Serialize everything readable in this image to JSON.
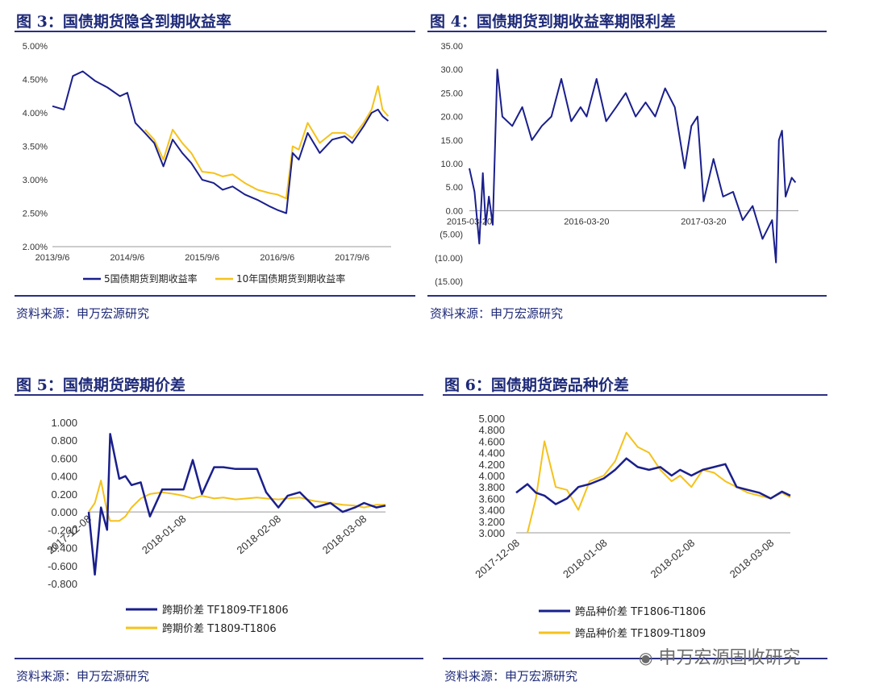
{
  "panels": {
    "p3": {
      "title": "图 3：国债期货隐含到期收益率",
      "source": "资料来源：申万宏源研究"
    },
    "p4": {
      "title": "图 4：国债期货到期收益率期限利差",
      "source": "资料来源：申万宏源研究"
    },
    "p5": {
      "title": "图 5：国债期货跨期价差",
      "source": "资料来源：申万宏源研究"
    },
    "p6": {
      "title": "图 6：国债期货跨品种价差",
      "source": "资料来源：申万宏源研究"
    }
  },
  "watermark": "申万宏源固收研究",
  "colors": {
    "navy": "#1a1f8c",
    "gold": "#f5c21b",
    "rule": "#2b2f80",
    "negative": "#d0021b"
  },
  "chart_data": [
    {
      "type": "line",
      "x": [
        "2013/9/6",
        "2013/11/1",
        "2013/12/15",
        "2014/2/1",
        "2014/4/1",
        "2014/6/1",
        "2014/8/1",
        "2014/9/6",
        "2014/10/15",
        "2014/12/1",
        "2015/1/15",
        "2015/3/1",
        "2015/4/15",
        "2015/6/1",
        "2015/7/15",
        "2015/9/6",
        "2015/11/1",
        "2015/12/15",
        "2016/2/1",
        "2016/4/1",
        "2016/6/1",
        "2016/8/1",
        "2016/9/6",
        "2016/10/20",
        "2016/11/20",
        "2016/12/20",
        "2017/2/1",
        "2017/4/1",
        "2017/6/1",
        "2017/8/1",
        "2017/9/6",
        "2017/11/1",
        "2017/12/10",
        "2018/1/10",
        "2018/2/1",
        "2018/3/1"
      ],
      "series": [
        {
          "name": "5国债期货到期收益率",
          "values": [
            4.1,
            4.05,
            4.55,
            4.62,
            4.48,
            4.38,
            4.25,
            4.3,
            3.85,
            3.7,
            3.55,
            3.2,
            3.6,
            3.4,
            3.25,
            3.0,
            2.95,
            2.85,
            2.9,
            2.78,
            2.7,
            2.6,
            2.55,
            2.5,
            3.4,
            3.3,
            3.7,
            3.4,
            3.6,
            3.65,
            3.55,
            3.8,
            4.0,
            4.05,
            3.95,
            3.88
          ]
        },
        {
          "name": "10年国债期货到期收益率",
          "values": [
            null,
            null,
            null,
            null,
            null,
            null,
            null,
            null,
            null,
            3.75,
            3.6,
            3.3,
            3.75,
            3.55,
            3.4,
            3.12,
            3.1,
            3.05,
            3.08,
            2.95,
            2.85,
            2.8,
            2.78,
            2.72,
            3.5,
            3.45,
            3.85,
            3.55,
            3.7,
            3.7,
            3.62,
            3.85,
            4.05,
            4.4,
            4.05,
            3.95
          ]
        }
      ],
      "y_ticks": [
        "5.00%",
        "4.50%",
        "4.00%",
        "3.50%",
        "3.00%",
        "2.50%",
        "2.00%"
      ],
      "x_ticks": [
        "2013/9/6",
        "2014/9/6",
        "2015/9/6",
        "2016/9/6",
        "2017/9/6"
      ],
      "ylim": [
        2.0,
        5.0
      ]
    },
    {
      "type": "line",
      "x": [
        "2015-03-20",
        "2015-04-05",
        "2015-04-20",
        "2015-05-01",
        "2015-05-10",
        "2015-05-20",
        "2015-06-01",
        "2015-06-15",
        "2015-07-01",
        "2015-08-01",
        "2015-09-01",
        "2015-10-01",
        "2015-11-01",
        "2015-12-01",
        "2016-01-01",
        "2016-02-01",
        "2016-03-01",
        "2016-03-20",
        "2016-04-20",
        "2016-05-20",
        "2016-06-20",
        "2016-07-20",
        "2016-08-20",
        "2016-09-20",
        "2016-10-20",
        "2016-11-20",
        "2016-12-20",
        "2017-01-20",
        "2017-02-10",
        "2017-03-01",
        "2017-03-20",
        "2017-04-20",
        "2017-05-20",
        "2017-06-20",
        "2017-07-20",
        "2017-08-20",
        "2017-09-20",
        "2017-10-20",
        "2017-11-01",
        "2017-11-10",
        "2017-11-20",
        "2017-12-01",
        "2017-12-20",
        "2018-01-01"
      ],
      "series": [
        {
          "name": "",
          "values": [
            9.0,
            4.0,
            -7.0,
            8.0,
            -3.0,
            3.0,
            -3.0,
            30.0,
            20.0,
            18.0,
            22.0,
            15.0,
            18.0,
            20.0,
            28.0,
            19.0,
            22.0,
            20.0,
            28.0,
            19.0,
            22.0,
            25.0,
            20.0,
            23.0,
            20.0,
            26.0,
            22.0,
            9.0,
            18.0,
            20.0,
            2.0,
            11.0,
            3.0,
            4.0,
            -2.0,
            1.0,
            -6.0,
            -2.0,
            -11.0,
            15.0,
            17.0,
            3.0,
            7.0,
            6.0
          ]
        }
      ],
      "y_ticks": [
        "35.00",
        "30.00",
        "25.00",
        "20.00",
        "15.00",
        "10.00",
        "5.00",
        "0.00",
        "(5.00)",
        "(10.00)",
        "(15.00)"
      ],
      "x_ticks": [
        "2015-03-20",
        "2016-03-20",
        "2017-03-20"
      ],
      "ylim": [
        -15,
        35
      ]
    },
    {
      "type": "line",
      "x": [
        "2017-12-08",
        "2017-12-10",
        "2017-12-12",
        "2017-12-14",
        "2017-12-15",
        "2017-12-18",
        "2017-12-20",
        "2017-12-22",
        "2017-12-25",
        "2017-12-28",
        "2018-01-01",
        "2018-01-05",
        "2018-01-08",
        "2018-01-11",
        "2018-01-14",
        "2018-01-18",
        "2018-01-21",
        "2018-01-25",
        "2018-02-01",
        "2018-02-04",
        "2018-02-08",
        "2018-02-11",
        "2018-02-15",
        "2018-02-20",
        "2018-02-25",
        "2018-03-01",
        "2018-03-05",
        "2018-03-08",
        "2018-03-12",
        "2018-03-15"
      ],
      "series": [
        {
          "name": "跨期价差 TF1809-TF1806",
          "values": [
            0.0,
            -0.7,
            0.05,
            -0.2,
            0.87,
            0.37,
            0.4,
            0.3,
            0.33,
            -0.05,
            0.25,
            0.25,
            0.25,
            0.58,
            0.2,
            0.5,
            0.5,
            0.48,
            0.48,
            0.22,
            0.05,
            0.18,
            0.22,
            0.05,
            0.1,
            0.0,
            0.05,
            0.1,
            0.05,
            0.07
          ]
        },
        {
          "name": "跨期价差 T1809-T1806",
          "values": [
            0.0,
            0.1,
            0.35,
            0.0,
            -0.1,
            -0.1,
            -0.05,
            0.05,
            0.15,
            0.2,
            0.22,
            0.2,
            0.18,
            0.15,
            0.18,
            0.15,
            0.16,
            0.14,
            0.16,
            0.15,
            0.14,
            0.15,
            0.16,
            0.12,
            0.1,
            0.08,
            0.07,
            0.05,
            0.08,
            0.08
          ]
        }
      ],
      "y_ticks": [
        "1.000",
        "0.800",
        "0.600",
        "0.400",
        "0.200",
        "0.000",
        "-0.200",
        "-0.400",
        "-0.600",
        "-0.800"
      ],
      "x_ticks": [
        "2017-12-08",
        "2018-01-08",
        "2018-02-08",
        "2018-03-08"
      ],
      "ylim": [
        -0.8,
        1.0
      ]
    },
    {
      "type": "line",
      "x": [
        "2017-12-08",
        "2017-12-12",
        "2017-12-15",
        "2017-12-18",
        "2017-12-22",
        "2017-12-26",
        "2017-12-30",
        "2018-01-03",
        "2018-01-08",
        "2018-01-12",
        "2018-01-16",
        "2018-01-20",
        "2018-01-24",
        "2018-01-28",
        "2018-02-01",
        "2018-02-04",
        "2018-02-08",
        "2018-02-12",
        "2018-02-16",
        "2018-02-20",
        "2018-02-24",
        "2018-02-28",
        "2018-03-04",
        "2018-03-08",
        "2018-03-12",
        "2018-03-15"
      ],
      "series": [
        {
          "name": "跨品种价差 TF1806-T1806",
          "values": [
            3.7,
            3.85,
            3.7,
            3.65,
            3.5,
            3.6,
            3.8,
            3.85,
            3.95,
            4.1,
            4.3,
            4.15,
            4.1,
            4.15,
            4.0,
            4.1,
            4.0,
            4.1,
            4.15,
            4.2,
            3.8,
            3.75,
            3.7,
            3.6,
            3.72,
            3.65
          ]
        },
        {
          "name": "跨品种价差 TF1809-T1809",
          "values": [
            null,
            3.0,
            3.6,
            4.6,
            3.8,
            3.75,
            3.4,
            3.9,
            4.0,
            4.25,
            4.75,
            4.5,
            4.4,
            4.1,
            3.9,
            4.0,
            3.8,
            4.1,
            4.05,
            3.9,
            3.8,
            3.7,
            3.65,
            3.6,
            3.7,
            3.62
          ]
        }
      ],
      "y_ticks": [
        "5.000",
        "4.800",
        "4.600",
        "4.400",
        "4.200",
        "4.000",
        "3.800",
        "3.600",
        "3.400",
        "3.200",
        "3.000"
      ],
      "x_ticks": [
        "2017-12-08",
        "2018-01-08",
        "2018-02-08",
        "2018-03-08"
      ],
      "ylim": [
        3.0,
        5.0
      ]
    }
  ]
}
